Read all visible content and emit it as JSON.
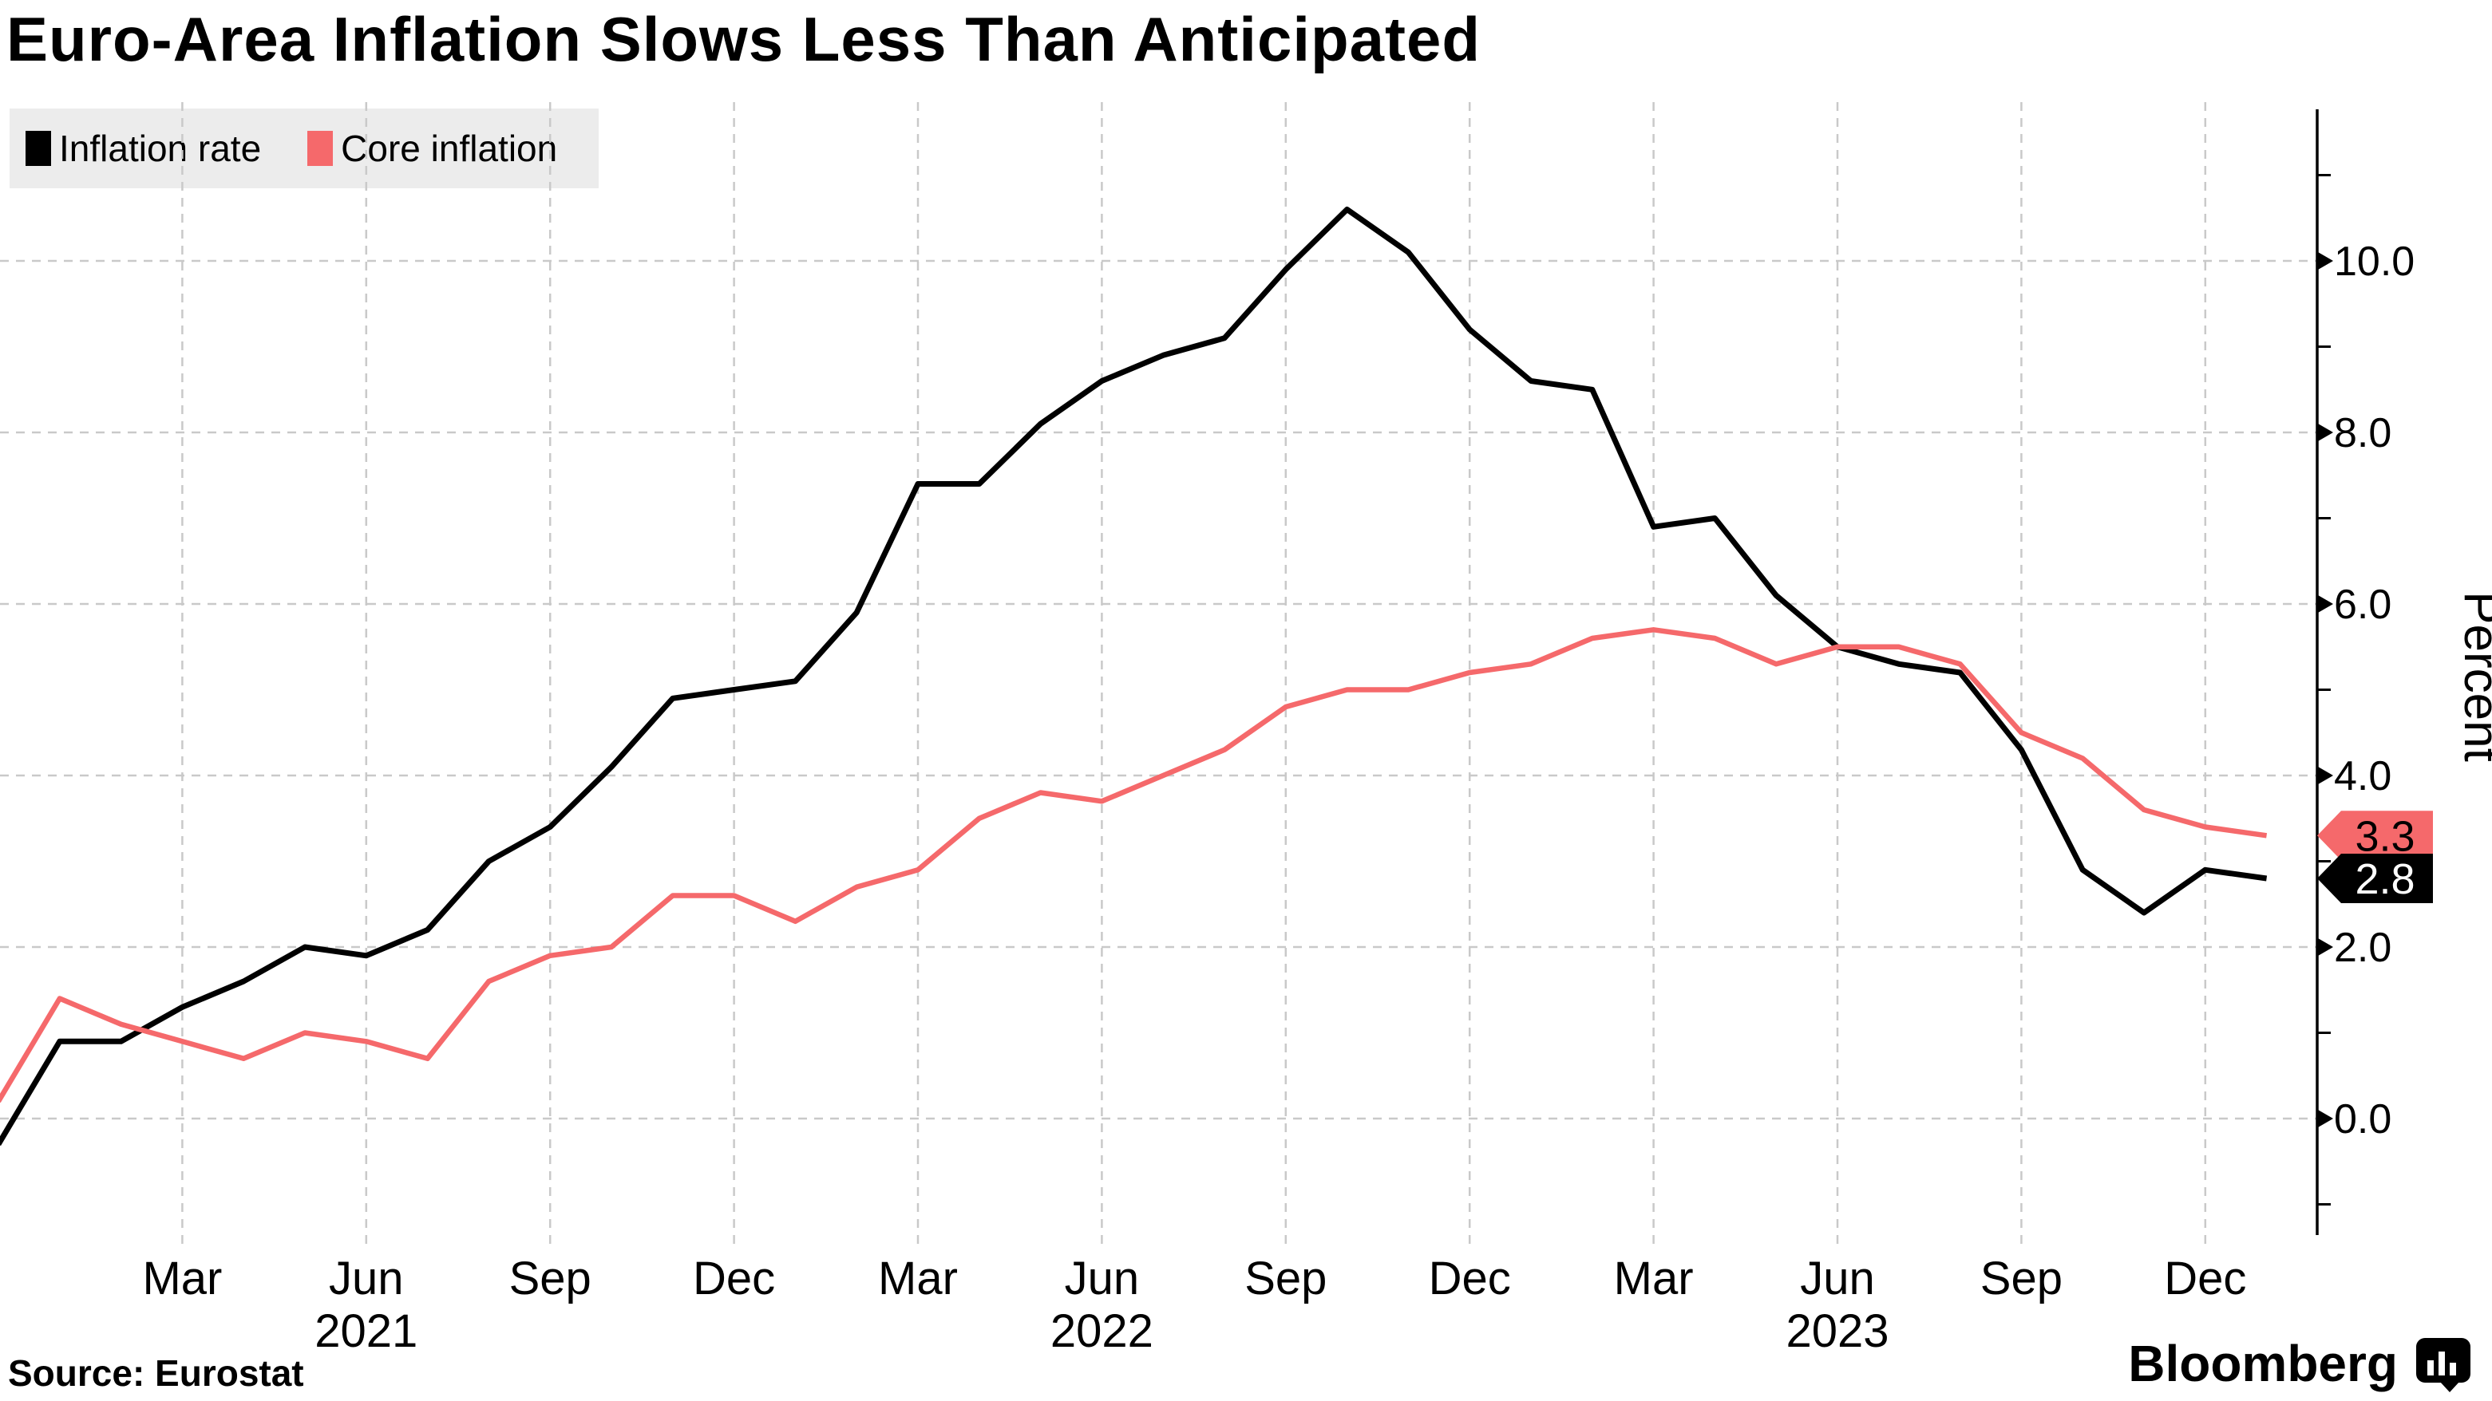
{
  "title": "Euro-Area Inflation Slows Less Than Anticipated",
  "legend": {
    "items": [
      {
        "label": "Inflation rate",
        "color": "#000000"
      },
      {
        "label": "Core inflation",
        "color": "#f5696b"
      }
    ]
  },
  "footer": {
    "source": "Source: Eurostat"
  },
  "brand": {
    "name": "Bloomberg"
  },
  "chart_data": {
    "type": "line",
    "title": "Euro-Area Inflation Slows Less Than Anticipated",
    "x": [
      "Dec 2020",
      "Jan 2021",
      "Feb 2021",
      "Mar 2021",
      "Apr 2021",
      "May 2021",
      "Jun 2021",
      "Jul 2021",
      "Aug 2021",
      "Sep 2021",
      "Oct 2021",
      "Nov 2021",
      "Dec 2021",
      "Jan 2022",
      "Feb 2022",
      "Mar 2022",
      "Apr 2022",
      "May 2022",
      "Jun 2022",
      "Jul 2022",
      "Aug 2022",
      "Sep 2022",
      "Oct 2022",
      "Nov 2022",
      "Dec 2022",
      "Jan 2023",
      "Feb 2023",
      "Mar 2023",
      "Apr 2023",
      "May 2023",
      "Jun 2023",
      "Jul 2023",
      "Aug 2023",
      "Sep 2023",
      "Oct 2023",
      "Nov 2023",
      "Dec 2023",
      "Jan 2024"
    ],
    "series": [
      {
        "name": "Inflation rate",
        "color": "#000000",
        "values": [
          -0.3,
          0.9,
          0.9,
          1.3,
          1.6,
          2.0,
          1.9,
          2.2,
          3.0,
          3.4,
          4.1,
          4.9,
          5.0,
          5.1,
          5.9,
          7.4,
          7.4,
          8.1,
          8.6,
          8.9,
          9.1,
          9.9,
          10.6,
          10.1,
          9.2,
          8.6,
          8.5,
          6.9,
          7.0,
          6.1,
          5.5,
          5.3,
          5.2,
          4.3,
          2.9,
          2.4,
          2.9,
          2.8
        ]
      },
      {
        "name": "Core inflation",
        "color": "#f5696b",
        "values": [
          0.2,
          1.4,
          1.1,
          0.9,
          0.7,
          1.0,
          0.9,
          0.7,
          1.6,
          1.9,
          2.0,
          2.6,
          2.6,
          2.3,
          2.7,
          2.9,
          3.5,
          3.8,
          3.7,
          4.0,
          4.3,
          4.8,
          5.0,
          5.0,
          5.2,
          5.3,
          5.6,
          5.7,
          5.6,
          5.3,
          5.5,
          5.5,
          5.3,
          4.5,
          4.2,
          3.6,
          3.4,
          3.3
        ]
      }
    ],
    "end_labels": [
      {
        "series": "Core inflation",
        "text": "3.3",
        "value": 3.3,
        "bg": "#f5696b",
        "fg": "#000000"
      },
      {
        "series": "Inflation rate",
        "text": "2.8",
        "value": 2.8,
        "bg": "#000000",
        "fg": "#ffffff"
      }
    ],
    "y_axis": {
      "label": "Percent",
      "side": "right",
      "tick_values": [
        0,
        2,
        4,
        6,
        8,
        10
      ],
      "tick_labels": [
        "0.0",
        "2.0",
        "4.0",
        "6.0",
        "8.0",
        "10.0"
      ],
      "minor_tick_values": [
        -1,
        1,
        3,
        5,
        7,
        9,
        11
      ],
      "range": [
        -1.4,
        11.8
      ]
    },
    "x_axis": {
      "quarter_ticks": [
        {
          "label": "Mar",
          "month_index": 3
        },
        {
          "label": "Jun",
          "month_index": 6
        },
        {
          "label": "Sep",
          "month_index": 9
        },
        {
          "label": "Dec",
          "month_index": 12
        },
        {
          "label": "Mar",
          "month_index": 15
        },
        {
          "label": "Jun",
          "month_index": 18
        },
        {
          "label": "Sep",
          "month_index": 21
        },
        {
          "label": "Dec",
          "month_index": 24
        },
        {
          "label": "Mar",
          "month_index": 27
        },
        {
          "label": "Jun",
          "month_index": 30
        },
        {
          "label": "Sep",
          "month_index": 33
        },
        {
          "label": "Dec",
          "month_index": 36
        }
      ],
      "year_labels": [
        {
          "label": "2021",
          "month_index": 6
        },
        {
          "label": "2022",
          "month_index": 18
        },
        {
          "label": "2023",
          "month_index": 30
        }
      ]
    },
    "grid": true,
    "grid_color": "#c9c9c9",
    "legend_position": "top-left"
  }
}
